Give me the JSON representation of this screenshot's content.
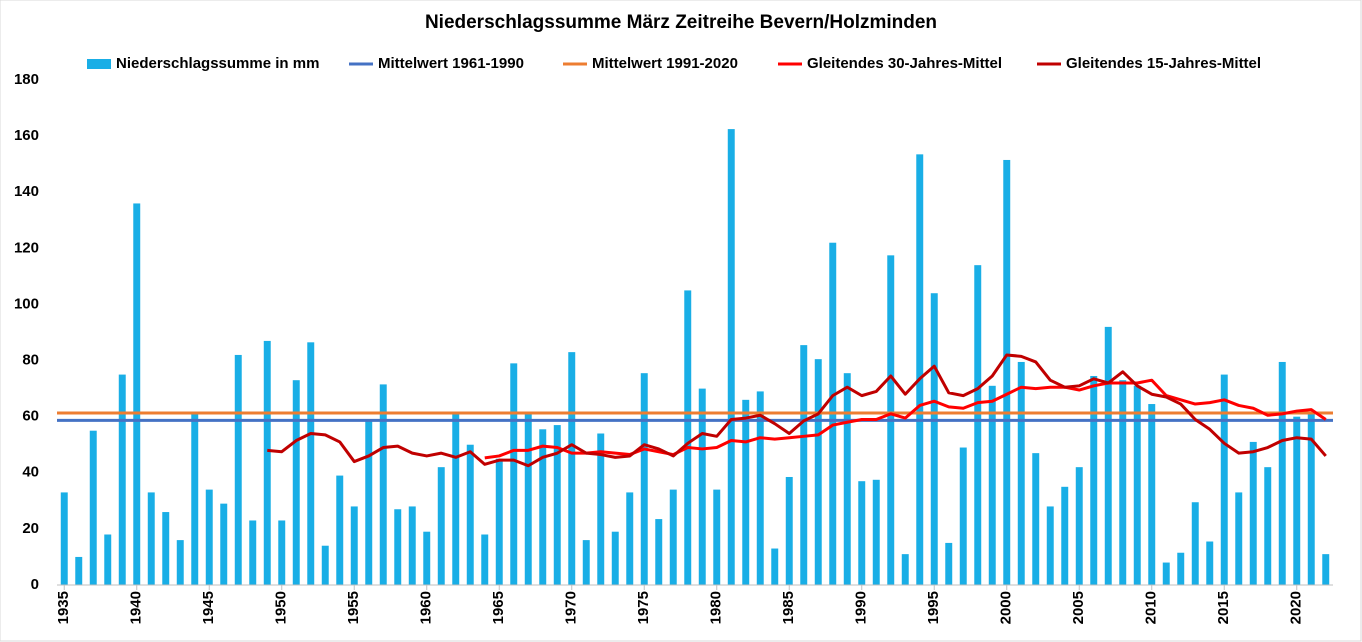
{
  "chart_data": {
    "type": "bar",
    "title": "Niederschlagssumme März Zeitreihe Bevern/Holzminden",
    "x": [
      1935,
      1936,
      1937,
      1938,
      1939,
      1940,
      1941,
      1942,
      1943,
      1944,
      1945,
      1946,
      1947,
      1948,
      1949,
      1950,
      1951,
      1952,
      1953,
      1954,
      1955,
      1956,
      1957,
      1958,
      1959,
      1960,
      1961,
      1962,
      1963,
      1964,
      1965,
      1966,
      1967,
      1968,
      1969,
      1970,
      1971,
      1972,
      1973,
      1974,
      1975,
      1976,
      1977,
      1978,
      1979,
      1980,
      1981,
      1982,
      1983,
      1984,
      1985,
      1986,
      1987,
      1988,
      1989,
      1990,
      1991,
      1992,
      1993,
      1994,
      1995,
      1996,
      1997,
      1998,
      1999,
      2000,
      2001,
      2002,
      2003,
      2004,
      2005,
      2006,
      2007,
      2008,
      2009,
      2010,
      2011,
      2012,
      2013,
      2014,
      2015,
      2016,
      2017,
      2018,
      2019,
      2020,
      2021,
      2022
    ],
    "xlim": [
      1934.5,
      2022.5
    ],
    "xticks": [
      1935,
      1940,
      1945,
      1950,
      1955,
      1960,
      1965,
      1970,
      1975,
      1980,
      1985,
      1990,
      1995,
      2000,
      2005,
      2010,
      2015,
      2020
    ],
    "ylim": [
      0,
      180
    ],
    "yticks": [
      0,
      20,
      40,
      60,
      80,
      100,
      120,
      140,
      160,
      180
    ],
    "legend": "top",
    "series": [
      {
        "name": "Niederschlagssumme in mm",
        "type": "bar",
        "color": "#19aee6",
        "values": [
          33,
          10,
          55,
          18,
          75,
          136,
          33,
          26,
          16,
          61,
          34,
          29,
          82,
          23,
          87,
          23,
          73,
          86.5,
          14,
          39,
          28,
          59,
          71.5,
          27,
          28,
          19,
          42,
          61,
          50,
          18,
          45,
          79,
          61,
          55.5,
          57,
          83,
          16,
          54,
          19,
          33,
          75.5,
          23.5,
          34,
          105,
          70,
          34,
          162.5,
          66,
          69,
          13,
          38.5,
          85.5,
          80.5,
          122,
          75.5,
          37,
          37.5,
          117.5,
          11,
          153.5,
          104,
          15,
          49,
          114,
          71,
          151.5,
          79.5,
          47,
          28,
          35,
          42,
          74.5,
          92,
          73,
          71,
          64.5,
          8,
          11.5,
          29.5,
          15.5,
          75,
          33,
          51,
          42,
          79.5,
          60,
          61,
          11
        ]
      },
      {
        "name": "Mittelwert 1961-1990",
        "type": "hline",
        "color": "#4472c4",
        "value": 58.7
      },
      {
        "name": "Mittelwert 1991-2020",
        "type": "hline",
        "color": "#ed7d31",
        "value": 61.3
      },
      {
        "name": "Gleitendes 30-Jahres-Mittel",
        "type": "line",
        "color": "#ff0000",
        "values": [
          null,
          null,
          null,
          null,
          null,
          null,
          null,
          null,
          null,
          null,
          null,
          null,
          null,
          null,
          null,
          null,
          null,
          null,
          null,
          null,
          null,
          null,
          null,
          null,
          null,
          null,
          null,
          null,
          null,
          45.3,
          46,
          48,
          48,
          49.5,
          49,
          47,
          47,
          47.5,
          47,
          46.5,
          48.5,
          47.5,
          46.5,
          49,
          48.5,
          49,
          51.5,
          51,
          52.5,
          52,
          52.5,
          53,
          53.5,
          57,
          58,
          59,
          59,
          61,
          59.5,
          64,
          65.5,
          63.5,
          63,
          65,
          65.5,
          68,
          70.5,
          70,
          70.5,
          70.5,
          69.5,
          71,
          72,
          72,
          72,
          73,
          67.5,
          66,
          64.5,
          65,
          66,
          64,
          63,
          60.5,
          61,
          62,
          62.5,
          59
        ]
      },
      {
        "name": "Gleitendes 15-Jahres-Mittel",
        "type": "line",
        "color": "#c00000",
        "values": [
          null,
          null,
          null,
          null,
          null,
          null,
          null,
          null,
          null,
          null,
          null,
          null,
          null,
          null,
          48,
          47.5,
          51.5,
          54,
          53.5,
          51,
          44,
          46,
          49,
          49.5,
          47,
          46,
          47,
          45.5,
          47.5,
          43,
          44.5,
          44.5,
          42.5,
          45.5,
          47,
          50,
          47,
          46.5,
          45.5,
          46,
          50,
          48.5,
          46,
          50.5,
          54,
          53,
          59,
          59.5,
          60.5,
          57.5,
          54,
          58.5,
          61,
          67.5,
          70.5,
          67.5,
          69,
          74.5,
          68,
          73.5,
          78,
          68.5,
          67.5,
          70,
          74.5,
          82,
          81.5,
          79.5,
          73,
          70.5,
          71,
          73.5,
          72,
          76,
          71,
          68,
          67,
          64.5,
          59,
          55.5,
          50.5,
          47,
          47.5,
          49,
          51.5,
          52.5,
          52,
          46
        ]
      }
    ]
  }
}
